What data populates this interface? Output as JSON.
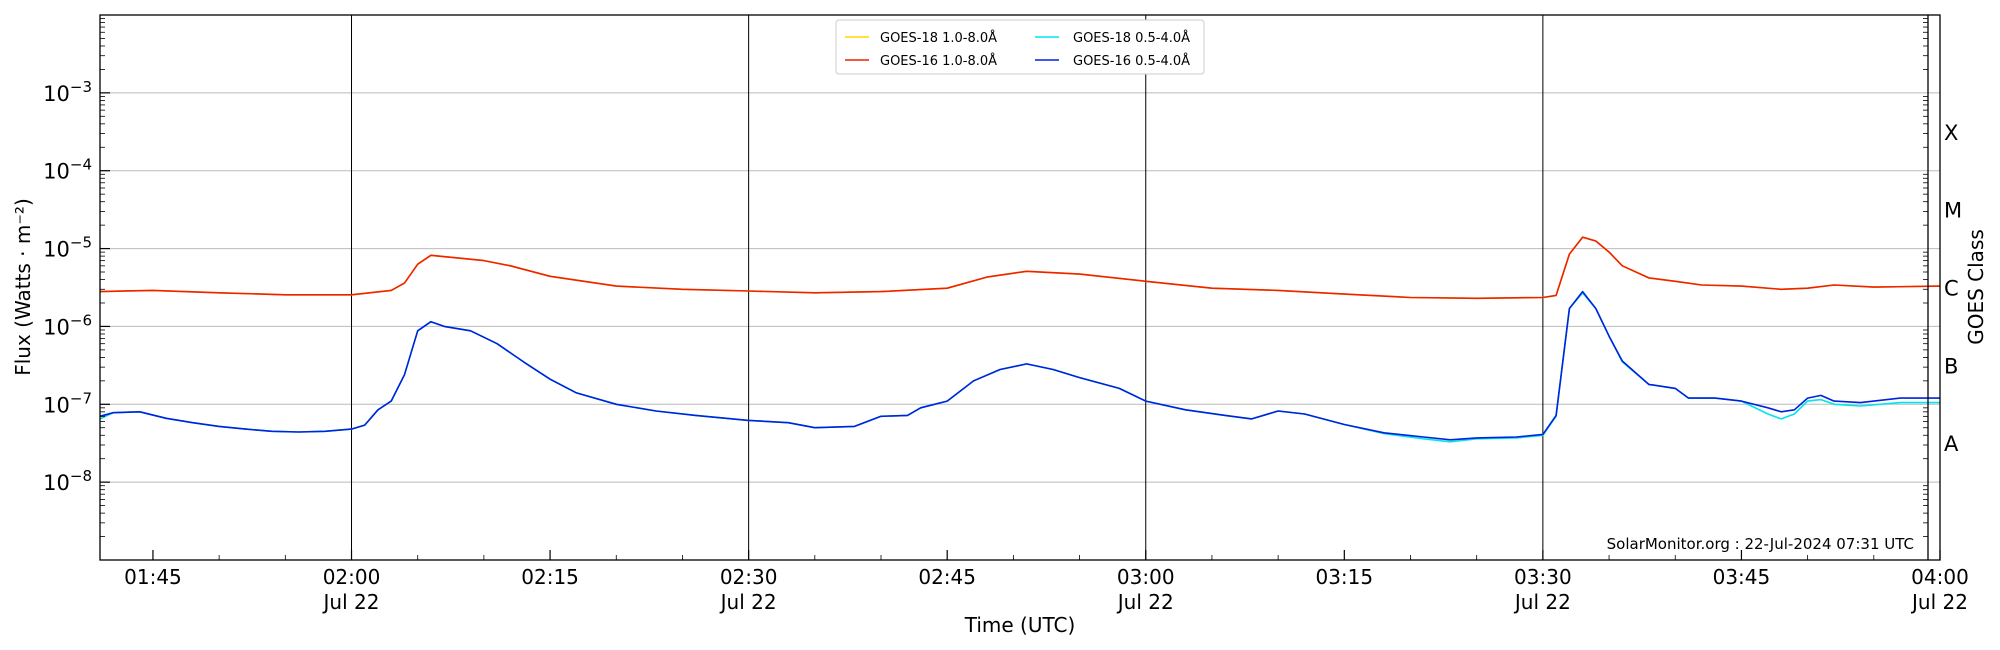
{
  "chart_data": {
    "type": "line",
    "xlabel": "Time (UTC)",
    "ylabel": "Flux (Watts · m⁻²)",
    "ylabel_right": "GOES Class",
    "y_scale": "log",
    "xlim": [
      "01:41",
      "04:00"
    ],
    "ylim": [
      1e-09,
      0.01
    ],
    "grid": "horizontal",
    "legend_position": "top-center",
    "annotation": "SolarMonitor.org : 22-Jul-2024 07:31 UTC",
    "x_ticks": [
      {
        "t": "01:45",
        "label": "01:45",
        "sub": ""
      },
      {
        "t": "02:00",
        "label": "02:00",
        "sub": "Jul 22"
      },
      {
        "t": "02:15",
        "label": "02:15",
        "sub": ""
      },
      {
        "t": "02:30",
        "label": "02:30",
        "sub": "Jul 22"
      },
      {
        "t": "02:45",
        "label": "02:45",
        "sub": ""
      },
      {
        "t": "03:00",
        "label": "03:00",
        "sub": "Jul 22"
      },
      {
        "t": "03:15",
        "label": "03:15",
        "sub": ""
      },
      {
        "t": "03:30",
        "label": "03:30",
        "sub": "Jul 22"
      },
      {
        "t": "03:45",
        "label": "03:45",
        "sub": ""
      },
      {
        "t": "04:00",
        "label": "04:00",
        "sub": "Jul 22"
      }
    ],
    "vertical_lines": [
      "02:00",
      "02:30",
      "03:00",
      "03:30"
    ],
    "y_ticks": [
      {
        "v": 0.001,
        "base": "10",
        "exp": "−3"
      },
      {
        "v": 0.0001,
        "base": "10",
        "exp": "−4"
      },
      {
        "v": 1e-05,
        "base": "10",
        "exp": "−5"
      },
      {
        "v": 1e-06,
        "base": "10",
        "exp": "−6"
      },
      {
        "v": 1e-07,
        "base": "10",
        "exp": "−7"
      },
      {
        "v": 1e-08,
        "base": "10",
        "exp": "−8"
      }
    ],
    "goes_classes": [
      {
        "label": "X",
        "v": 0.0001
      },
      {
        "label": "M",
        "v": 1e-05
      },
      {
        "label": "C",
        "v": 1e-06
      },
      {
        "label": "B",
        "v": 1e-07
      },
      {
        "label": "A",
        "v": 1e-08
      }
    ],
    "series": [
      {
        "name": "GOES-18 1.0-8.0Å",
        "color": "#ffd700",
        "points": [
          [
            "01:41",
            2.8e-06
          ],
          [
            "01:45",
            2.9e-06
          ],
          [
            "01:50",
            2.7e-06
          ],
          [
            "01:55",
            2.55e-06
          ],
          [
            "02:00",
            2.55e-06
          ],
          [
            "02:03",
            2.9e-06
          ],
          [
            "02:04",
            3.6e-06
          ],
          [
            "02:05",
            6.3e-06
          ],
          [
            "02:06",
            8.2e-06
          ],
          [
            "02:08",
            7.6e-06
          ],
          [
            "02:10",
            7e-06
          ],
          [
            "02:12",
            6e-06
          ],
          [
            "02:15",
            4.4e-06
          ],
          [
            "02:20",
            3.3e-06
          ],
          [
            "02:25",
            3e-06
          ],
          [
            "02:30",
            2.85e-06
          ],
          [
            "02:35",
            2.7e-06
          ],
          [
            "02:40",
            2.8e-06
          ],
          [
            "02:45",
            3.1e-06
          ],
          [
            "02:48",
            4.3e-06
          ],
          [
            "02:51",
            5.1e-06
          ],
          [
            "02:55",
            4.7e-06
          ],
          [
            "03:00",
            3.8e-06
          ],
          [
            "03:05",
            3.1e-06
          ],
          [
            "03:10",
            2.9e-06
          ],
          [
            "03:15",
            2.6e-06
          ],
          [
            "03:20",
            2.35e-06
          ],
          [
            "03:25",
            2.3e-06
          ],
          [
            "03:30",
            2.35e-06
          ],
          [
            "03:31",
            2.5e-06
          ],
          [
            "03:32",
            8.5e-06
          ],
          [
            "03:33",
            1.4e-05
          ],
          [
            "03:34",
            1.25e-05
          ],
          [
            "03:35",
            9e-06
          ],
          [
            "03:36",
            6e-06
          ],
          [
            "03:38",
            4.2e-06
          ],
          [
            "03:40",
            3.8e-06
          ],
          [
            "03:42",
            3.4e-06
          ],
          [
            "03:45",
            3.3e-06
          ],
          [
            "03:48",
            3e-06
          ],
          [
            "03:50",
            3.1e-06
          ],
          [
            "03:52",
            3.4e-06
          ],
          [
            "03:55",
            3.2e-06
          ],
          [
            "04:00",
            3.3e-06
          ]
        ]
      },
      {
        "name": "GOES-16 1.0-8.0Å",
        "color": "#ee2200",
        "points": [
          [
            "01:41",
            2.8e-06
          ],
          [
            "01:45",
            2.9e-06
          ],
          [
            "01:50",
            2.7e-06
          ],
          [
            "01:55",
            2.55e-06
          ],
          [
            "02:00",
            2.55e-06
          ],
          [
            "02:03",
            2.9e-06
          ],
          [
            "02:04",
            3.6e-06
          ],
          [
            "02:05",
            6.3e-06
          ],
          [
            "02:06",
            8.2e-06
          ],
          [
            "02:08",
            7.6e-06
          ],
          [
            "02:10",
            7e-06
          ],
          [
            "02:12",
            6e-06
          ],
          [
            "02:15",
            4.4e-06
          ],
          [
            "02:20",
            3.3e-06
          ],
          [
            "02:25",
            3e-06
          ],
          [
            "02:30",
            2.85e-06
          ],
          [
            "02:35",
            2.7e-06
          ],
          [
            "02:40",
            2.8e-06
          ],
          [
            "02:45",
            3.1e-06
          ],
          [
            "02:48",
            4.3e-06
          ],
          [
            "02:51",
            5.1e-06
          ],
          [
            "02:55",
            4.7e-06
          ],
          [
            "03:00",
            3.8e-06
          ],
          [
            "03:05",
            3.1e-06
          ],
          [
            "03:10",
            2.9e-06
          ],
          [
            "03:15",
            2.6e-06
          ],
          [
            "03:20",
            2.35e-06
          ],
          [
            "03:25",
            2.3e-06
          ],
          [
            "03:30",
            2.35e-06
          ],
          [
            "03:31",
            2.5e-06
          ],
          [
            "03:32",
            8.5e-06
          ],
          [
            "03:33",
            1.4e-05
          ],
          [
            "03:34",
            1.25e-05
          ],
          [
            "03:35",
            9e-06
          ],
          [
            "03:36",
            6e-06
          ],
          [
            "03:38",
            4.2e-06
          ],
          [
            "03:40",
            3.8e-06
          ],
          [
            "03:42",
            3.4e-06
          ],
          [
            "03:45",
            3.3e-06
          ],
          [
            "03:48",
            3e-06
          ],
          [
            "03:50",
            3.1e-06
          ],
          [
            "03:52",
            3.4e-06
          ],
          [
            "03:55",
            3.2e-06
          ],
          [
            "04:00",
            3.3e-06
          ]
        ]
      },
      {
        "name": "GOES-18 0.5-4.0Å",
        "color": "#00e5ee",
        "points": [
          [
            "01:41",
            6.5e-08
          ],
          [
            "01:42",
            7.8e-08
          ],
          [
            "01:44",
            8e-08
          ],
          [
            "01:46",
            6.6e-08
          ],
          [
            "01:48",
            5.8e-08
          ],
          [
            "01:50",
            5.2e-08
          ],
          [
            "01:52",
            4.8e-08
          ],
          [
            "01:54",
            4.5e-08
          ],
          [
            "01:56",
            4.4e-08
          ],
          [
            "01:58",
            4.5e-08
          ],
          [
            "02:00",
            4.8e-08
          ],
          [
            "02:01",
            5.4e-08
          ],
          [
            "02:02",
            8.5e-08
          ],
          [
            "02:03",
            1.1e-07
          ],
          [
            "02:04",
            2.4e-07
          ],
          [
            "02:05",
            8.8e-07
          ],
          [
            "02:06",
            1.15e-06
          ],
          [
            "02:07",
            1e-06
          ],
          [
            "02:09",
            8.8e-07
          ],
          [
            "02:11",
            6e-07
          ],
          [
            "02:13",
            3.5e-07
          ],
          [
            "02:15",
            2.1e-07
          ],
          [
            "02:17",
            1.4e-07
          ],
          [
            "02:20",
            1e-07
          ],
          [
            "02:23",
            8.2e-08
          ],
          [
            "02:26",
            7.2e-08
          ],
          [
            "02:30",
            6.2e-08
          ],
          [
            "02:33",
            5.8e-08
          ],
          [
            "02:35",
            5e-08
          ],
          [
            "02:38",
            5.2e-08
          ],
          [
            "02:40",
            7e-08
          ],
          [
            "02:42",
            7.2e-08
          ],
          [
            "02:43",
            9e-08
          ],
          [
            "02:45",
            1.1e-07
          ],
          [
            "02:47",
            2e-07
          ],
          [
            "02:49",
            2.8e-07
          ],
          [
            "02:51",
            3.3e-07
          ],
          [
            "02:53",
            2.8e-07
          ],
          [
            "02:55",
            2.2e-07
          ],
          [
            "02:58",
            1.6e-07
          ],
          [
            "03:00",
            1.1e-07
          ],
          [
            "03:03",
            8.5e-08
          ],
          [
            "03:06",
            7.2e-08
          ],
          [
            "03:08",
            6.5e-08
          ],
          [
            "03:10",
            8.2e-08
          ],
          [
            "03:12",
            7.5e-08
          ],
          [
            "03:15",
            5.5e-08
          ],
          [
            "03:18",
            4.2e-08
          ],
          [
            "03:21",
            3.6e-08
          ],
          [
            "03:23",
            3.3e-08
          ],
          [
            "03:25",
            3.6e-08
          ],
          [
            "03:28",
            3.7e-08
          ],
          [
            "03:30",
            4e-08
          ],
          [
            "03:31",
            7e-08
          ],
          [
            "03:32",
            1.7e-06
          ],
          [
            "03:33",
            2.7e-06
          ],
          [
            "03:34",
            1.7e-06
          ],
          [
            "03:35",
            7.5e-07
          ],
          [
            "03:36",
            3.5e-07
          ],
          [
            "03:38",
            1.8e-07
          ],
          [
            "03:40",
            1.6e-07
          ],
          [
            "03:41",
            1.2e-07
          ],
          [
            "03:43",
            1.2e-07
          ],
          [
            "03:45",
            1.1e-07
          ],
          [
            "03:47",
            7.5e-08
          ],
          [
            "03:48",
            6.5e-08
          ],
          [
            "03:49",
            7.5e-08
          ],
          [
            "03:50",
            1.1e-07
          ],
          [
            "03:51",
            1.15e-07
          ],
          [
            "03:52",
            1e-07
          ],
          [
            "03:54",
            9.5e-08
          ],
          [
            "03:57",
            1.05e-07
          ],
          [
            "04:00",
            1.05e-07
          ]
        ]
      },
      {
        "name": "GOES-16 0.5-4.0Å",
        "color": "#0022dd",
        "points": [
          [
            "01:41",
            7e-08
          ],
          [
            "01:42",
            7.8e-08
          ],
          [
            "01:44",
            8e-08
          ],
          [
            "01:46",
            6.6e-08
          ],
          [
            "01:48",
            5.8e-08
          ],
          [
            "01:50",
            5.2e-08
          ],
          [
            "01:52",
            4.8e-08
          ],
          [
            "01:54",
            4.5e-08
          ],
          [
            "01:56",
            4.4e-08
          ],
          [
            "01:58",
            4.5e-08
          ],
          [
            "02:00",
            4.8e-08
          ],
          [
            "02:01",
            5.4e-08
          ],
          [
            "02:02",
            8.5e-08
          ],
          [
            "02:03",
            1.1e-07
          ],
          [
            "02:04",
            2.4e-07
          ],
          [
            "02:05",
            8.8e-07
          ],
          [
            "02:06",
            1.15e-06
          ],
          [
            "02:07",
            1e-06
          ],
          [
            "02:09",
            8.8e-07
          ],
          [
            "02:11",
            6e-07
          ],
          [
            "02:13",
            3.5e-07
          ],
          [
            "02:15",
            2.1e-07
          ],
          [
            "02:17",
            1.4e-07
          ],
          [
            "02:20",
            1e-07
          ],
          [
            "02:23",
            8.2e-08
          ],
          [
            "02:26",
            7.2e-08
          ],
          [
            "02:30",
            6.2e-08
          ],
          [
            "02:33",
            5.8e-08
          ],
          [
            "02:35",
            5e-08
          ],
          [
            "02:38",
            5.2e-08
          ],
          [
            "02:40",
            7e-08
          ],
          [
            "02:42",
            7.2e-08
          ],
          [
            "02:43",
            9e-08
          ],
          [
            "02:45",
            1.1e-07
          ],
          [
            "02:47",
            2e-07
          ],
          [
            "02:49",
            2.8e-07
          ],
          [
            "02:51",
            3.3e-07
          ],
          [
            "02:53",
            2.8e-07
          ],
          [
            "02:55",
            2.2e-07
          ],
          [
            "02:58",
            1.6e-07
          ],
          [
            "03:00",
            1.1e-07
          ],
          [
            "03:03",
            8.5e-08
          ],
          [
            "03:06",
            7.2e-08
          ],
          [
            "03:08",
            6.5e-08
          ],
          [
            "03:10",
            8.2e-08
          ],
          [
            "03:12",
            7.5e-08
          ],
          [
            "03:15",
            5.5e-08
          ],
          [
            "03:18",
            4.3e-08
          ],
          [
            "03:21",
            3.8e-08
          ],
          [
            "03:23",
            3.5e-08
          ],
          [
            "03:25",
            3.7e-08
          ],
          [
            "03:28",
            3.8e-08
          ],
          [
            "03:30",
            4.1e-08
          ],
          [
            "03:31",
            7.2e-08
          ],
          [
            "03:32",
            1.7e-06
          ],
          [
            "03:33",
            2.8e-06
          ],
          [
            "03:34",
            1.7e-06
          ],
          [
            "03:35",
            7.5e-07
          ],
          [
            "03:36",
            3.6e-07
          ],
          [
            "03:38",
            1.8e-07
          ],
          [
            "03:40",
            1.6e-07
          ],
          [
            "03:41",
            1.2e-07
          ],
          [
            "03:43",
            1.2e-07
          ],
          [
            "03:45",
            1.1e-07
          ],
          [
            "03:47",
            9e-08
          ],
          [
            "03:48",
            8e-08
          ],
          [
            "03:49",
            8.5e-08
          ],
          [
            "03:50",
            1.2e-07
          ],
          [
            "03:51",
            1.3e-07
          ],
          [
            "03:52",
            1.1e-07
          ],
          [
            "03:54",
            1.05e-07
          ],
          [
            "03:57",
            1.2e-07
          ],
          [
            "04:00",
            1.2e-07
          ]
        ]
      }
    ]
  }
}
